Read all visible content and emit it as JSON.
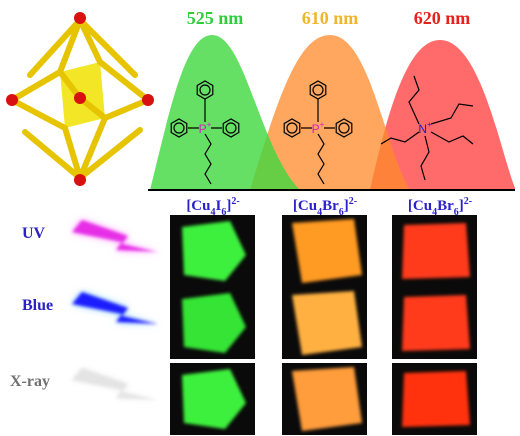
{
  "peaks": [
    {
      "label": "525 nm",
      "color": "#2fcf3a"
    },
    {
      "label": "610 nm",
      "color": "#f0b62a"
    },
    {
      "label": "620 nm",
      "color": "#e8201a"
    }
  ],
  "compounds": [
    {
      "formula": [
        {
          "text": "[Cu",
          "kind": "normal"
        },
        {
          "text": "4",
          "kind": "sub"
        },
        {
          "text": "I",
          "kind": "normal"
        },
        {
          "text": "6",
          "kind": "sub"
        },
        {
          "text": "]",
          "kind": "normal"
        },
        {
          "text": "2-",
          "kind": "sup"
        }
      ]
    },
    {
      "formula": [
        {
          "text": "[Cu",
          "kind": "normal"
        },
        {
          "text": "4",
          "kind": "sub"
        },
        {
          "text": "Br",
          "kind": "normal"
        },
        {
          "text": "6",
          "kind": "sub"
        },
        {
          "text": "]",
          "kind": "normal"
        },
        {
          "text": "2-",
          "kind": "sup"
        }
      ]
    },
    {
      "formula": [
        {
          "text": "[Cu",
          "kind": "normal"
        },
        {
          "text": "4",
          "kind": "sub"
        },
        {
          "text": "Br",
          "kind": "normal"
        },
        {
          "text": "6",
          "kind": "sub"
        },
        {
          "text": "]",
          "kind": "normal"
        },
        {
          "text": "2-",
          "kind": "sup"
        }
      ]
    }
  ],
  "cations": [
    {
      "atom": "P",
      "charge": "+"
    },
    {
      "atom": "P",
      "charge": "+"
    },
    {
      "atom": "N",
      "charge": "+"
    }
  ],
  "excitations": [
    {
      "label": "UV",
      "color": "#2a22c8",
      "bolt": "#e62ee6",
      "glow": "#ff9cff"
    },
    {
      "label": "Blue",
      "color": "#2a22c8",
      "bolt": "#1a1aff",
      "glow": "#8ad0ff"
    },
    {
      "label": "X-ray",
      "color": "#707070",
      "bolt": "#e4e4e4",
      "glow": "#f4f4f4"
    }
  ]
}
